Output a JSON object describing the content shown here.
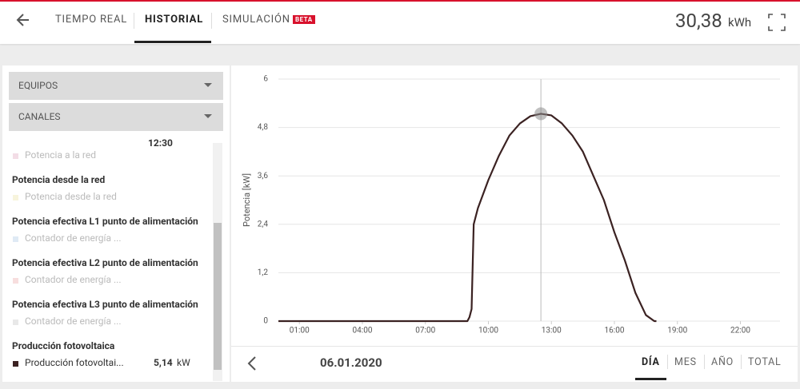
{
  "nav": {
    "tabs": [
      "TIEMPO REAL",
      "HISTORIAL",
      "SIMULACIÓN"
    ],
    "badge": "BETA",
    "total": "30,38",
    "total_unit": "kWh"
  },
  "sidebar": {
    "dropdowns": [
      "EQUIPOS",
      "CANALES"
    ],
    "time": "12:30",
    "partial_item": {
      "label": "Potencia a la red",
      "color": "#f3dde6"
    },
    "groups": [
      {
        "title": "Potencia desde la red",
        "item": "Potencia desde la red",
        "color": "#f7f4dc"
      },
      {
        "title": "Potencia efectiva L1 punto de alimentación",
        "item": "Contador de energía ...",
        "color": "#dfeaf5"
      },
      {
        "title": "Potencia efectiva L2 punto de alimentación",
        "item": "Contador de energía ...",
        "color": "#f7dede"
      },
      {
        "title": "Potencia efectiva L3 punto de alimentación",
        "item": "Contador de energía ...",
        "color": "#e8e8e8"
      },
      {
        "title": "Producción fotovoltaica",
        "item": "Producción fotovoltai...",
        "color": "#3b2222",
        "value": "5,14",
        "unit": "kW"
      }
    ]
  },
  "chart_data": {
    "type": "line",
    "y_label": "Potencia [kW]",
    "x": [
      0,
      9,
      9.1,
      9.2,
      9.3,
      9.5,
      10,
      10.5,
      11,
      11.5,
      12,
      12.5,
      13,
      13.5,
      14,
      14.5,
      15,
      15.5,
      16,
      16.5,
      17,
      17.5,
      17.9,
      18
    ],
    "series": [
      {
        "name": "Producción fotovoltaica",
        "color": "#3b2222",
        "values": [
          0,
          0,
          0.1,
          0.3,
          2.4,
          2.8,
          3.5,
          4.1,
          4.6,
          4.9,
          5.08,
          5.14,
          5.1,
          4.9,
          4.6,
          4.2,
          3.6,
          3.0,
          2.2,
          1.5,
          0.7,
          0.15,
          0,
          0
        ]
      }
    ],
    "hover_index": 11,
    "xlim": [
      0,
      24
    ],
    "xticks": [
      {
        "value": 1,
        "label": "01:00"
      },
      {
        "value": 4,
        "label": "04:00"
      },
      {
        "value": 7,
        "label": "07:00"
      },
      {
        "value": 10,
        "label": "10:00"
      },
      {
        "value": 13,
        "label": "13:00"
      },
      {
        "value": 16,
        "label": "16:00"
      },
      {
        "value": 19,
        "label": "19:00"
      },
      {
        "value": 22,
        "label": "22:00"
      }
    ],
    "ylim": [
      0,
      6
    ],
    "yticks": [
      0,
      {
        "value": 1.2,
        "label": "1,2"
      },
      {
        "value": 2.4,
        "label": "2,4"
      },
      {
        "value": 3.6,
        "label": "3,6"
      },
      {
        "value": 4.8,
        "label": "4,8"
      },
      6
    ],
    "grid": true
  },
  "footer": {
    "date": "06.01.2020",
    "periods": [
      "DÍA",
      "MES",
      "AÑO",
      "TOTAL"
    ]
  }
}
